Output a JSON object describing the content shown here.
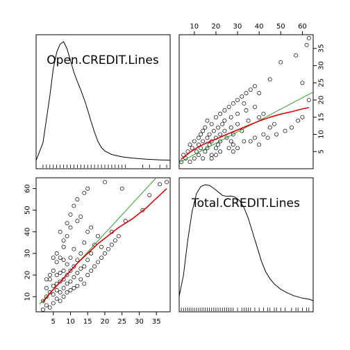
{
  "chart_data": {
    "type": "scatter",
    "kind": "scatterplot-matrix",
    "variables": [
      "Open.CREDIT.Lines",
      "Total.CREDIT.Lines"
    ],
    "diagonal": "density-with-rug",
    "colors": {
      "points": "#000000",
      "linear_fit": "#2ca02c",
      "smooth_fit": "#e00000",
      "frame": "#000000"
    },
    "axes": {
      "open": {
        "range": [
          0,
          39
        ],
        "ticks": [
          5,
          10,
          15,
          20,
          25,
          30,
          35
        ]
      },
      "total": {
        "range": [
          3,
          65
        ],
        "ticks": [
          10,
          20,
          30,
          40,
          50,
          60
        ]
      }
    },
    "density": {
      "open": {
        "x": [
          0,
          2,
          4,
          5,
          6,
          7,
          8,
          9,
          10,
          11,
          12,
          13,
          14,
          15,
          16,
          17,
          18,
          19,
          20,
          22,
          25,
          28,
          32,
          36,
          39
        ],
        "y": [
          0.0,
          0.015,
          0.055,
          0.078,
          0.092,
          0.099,
          0.101,
          0.095,
          0.085,
          0.075,
          0.067,
          0.06,
          0.052,
          0.043,
          0.033,
          0.024,
          0.016,
          0.011,
          0.008,
          0.005,
          0.003,
          0.002,
          0.001,
          0.0005,
          0.0002
        ]
      },
      "total": {
        "x": [
          3,
          5,
          7,
          9,
          11,
          13,
          15,
          17,
          19,
          21,
          23,
          25,
          27,
          29,
          31,
          33,
          35,
          37,
          39,
          41,
          43,
          45,
          47,
          50,
          53,
          56,
          60,
          63,
          65
        ],
        "y": [
          0.002,
          0.008,
          0.018,
          0.026,
          0.031,
          0.033,
          0.0335,
          0.0333,
          0.0325,
          0.0315,
          0.0305,
          0.0302,
          0.0303,
          0.03,
          0.029,
          0.027,
          0.024,
          0.02,
          0.016,
          0.012,
          0.009,
          0.007,
          0.0055,
          0.004,
          0.003,
          0.0022,
          0.0015,
          0.0012,
          0.0008
        ]
      }
    },
    "linear_fit": {
      "open_vs_total": {
        "x": [
          3,
          65
        ],
        "y": [
          1.8,
          22.3
        ]
      },
      "total_vs_open": {
        "x": [
          1,
          39
        ],
        "y": [
          6.5,
          72
        ]
      }
    },
    "smooth_fit": {
      "open_vs_total": {
        "x": [
          4,
          8,
          12,
          16,
          20,
          25,
          30,
          35,
          40,
          45,
          50,
          55,
          60,
          63
        ],
        "y": [
          2.8,
          4.8,
          6.4,
          7.6,
          8.6,
          10.0,
          11.3,
          12.6,
          13.9,
          15.0,
          15.9,
          16.6,
          17.4,
          17.8
        ]
      },
      "total_vs_open": {
        "x": [
          2,
          4,
          6,
          8,
          10,
          12,
          14,
          16,
          18,
          20,
          22,
          24,
          26,
          28,
          30,
          32,
          34,
          36,
          38
        ],
        "y": [
          7.5,
          11.5,
          15.0,
          18.5,
          22.0,
          25.5,
          28.5,
          31.5,
          34.5,
          37.0,
          39.5,
          42.0,
          44.0,
          46.0,
          48.5,
          51.0,
          54.0,
          57.0,
          60.0
        ]
      }
    },
    "sample_points": {
      "open": [
        2,
        2,
        3,
        3,
        3,
        4,
        4,
        4,
        5,
        5,
        5,
        5,
        6,
        6,
        6,
        6,
        6,
        7,
        7,
        7,
        7,
        7,
        8,
        8,
        8,
        8,
        8,
        8,
        9,
        9,
        9,
        9,
        9,
        10,
        10,
        10,
        10,
        10,
        11,
        11,
        11,
        11,
        12,
        12,
        12,
        12,
        13,
        13,
        13,
        14,
        14,
        14,
        15,
        15,
        15,
        16,
        16,
        17,
        17,
        18,
        18,
        19,
        19,
        20,
        21,
        22,
        22,
        23,
        24,
        26,
        31,
        33,
        36,
        38,
        4,
        6,
        8,
        10,
        12,
        14,
        9,
        7,
        11,
        5,
        13,
        15,
        3,
        16,
        20,
        25
      ],
      "total": [
        4,
        8,
        6,
        10,
        14,
        5,
        12,
        18,
        7,
        11,
        15,
        22,
        9,
        13,
        16,
        20,
        26,
        8,
        12,
        17,
        21,
        28,
        10,
        14,
        18,
        22,
        27,
        33,
        12,
        16,
        20,
        25,
        38,
        13,
        17,
        22,
        28,
        42,
        14,
        19,
        24,
        32,
        15,
        21,
        27,
        45,
        18,
        23,
        30,
        16,
        24,
        35,
        20,
        27,
        40,
        22,
        30,
        24,
        34,
        26,
        38,
        28,
        33,
        30,
        32,
        34,
        40,
        36,
        38,
        45,
        50,
        57,
        62,
        63,
        20,
        30,
        36,
        48,
        55,
        58,
        44,
        40,
        52,
        28,
        47,
        60,
        18,
        42,
        63,
        60
      ]
    }
  }
}
